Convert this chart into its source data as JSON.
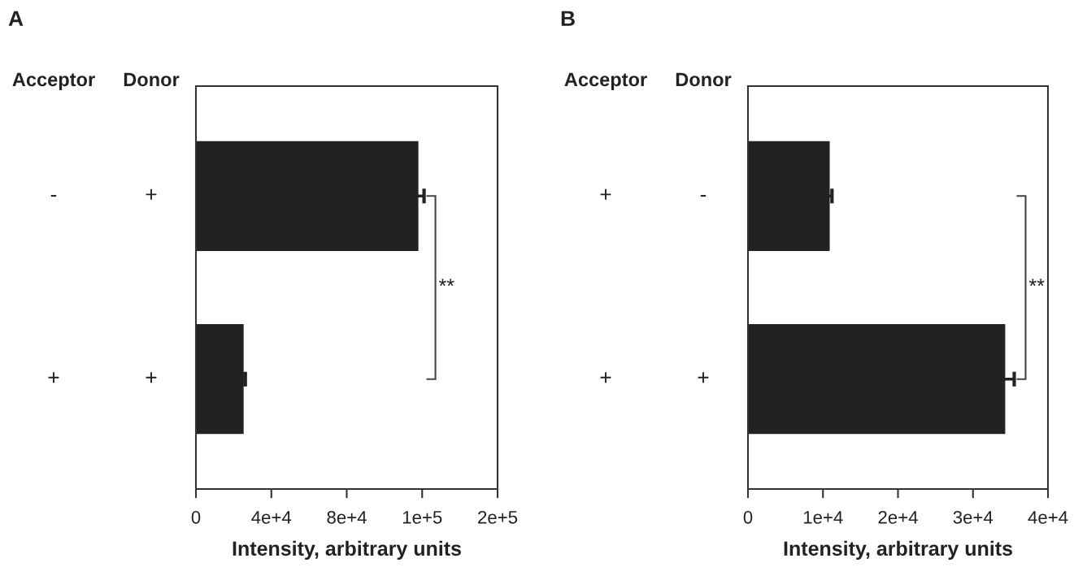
{
  "chart_data": [
    {
      "type": "bar",
      "orientation": "horizontal",
      "title": "A",
      "xlabel": "Intensity, arbitrary units",
      "ylabel": "Acceptor",
      "y2label": "Donor",
      "categories": [
        "-",
        "+"
      ],
      "y2_categories": [
        "+",
        "+"
      ],
      "values": [
        118000,
        25300
      ],
      "errors": [
        3000,
        900
      ],
      "color": "#222222",
      "xlim": [
        0,
        160000
      ],
      "xticks": [
        0,
        {
          "value": 40000,
          "label": "4e+4"
        },
        {
          "value": 80000,
          "label": "8e+4"
        },
        {
          "value": 120000,
          "label": "1e+5"
        },
        {
          "value": 160000,
          "label": "2e+5"
        }
      ],
      "annotations": [
        "**"
      ]
    },
    {
      "type": "bar",
      "orientation": "horizontal",
      "title": "B",
      "xlabel": "Intensity, arbitrary units",
      "ylabel": "Acceptor",
      "y2label": "Donor",
      "categories": [
        "+",
        "+"
      ],
      "y2_categories": [
        "-",
        "+"
      ],
      "values": [
        10900,
        34300
      ],
      "errors": [
        300,
        1200
      ],
      "color": "#222222",
      "xlim": [
        0,
        40000
      ],
      "xticks": [
        0,
        {
          "value": 10000,
          "label": "1e+4"
        },
        {
          "value": 20000,
          "label": "2e+4"
        },
        {
          "value": 30000,
          "label": "3e+4"
        },
        {
          "value": 40000,
          "label": "4e+4"
        }
      ],
      "annotations": [
        "**"
      ]
    }
  ]
}
